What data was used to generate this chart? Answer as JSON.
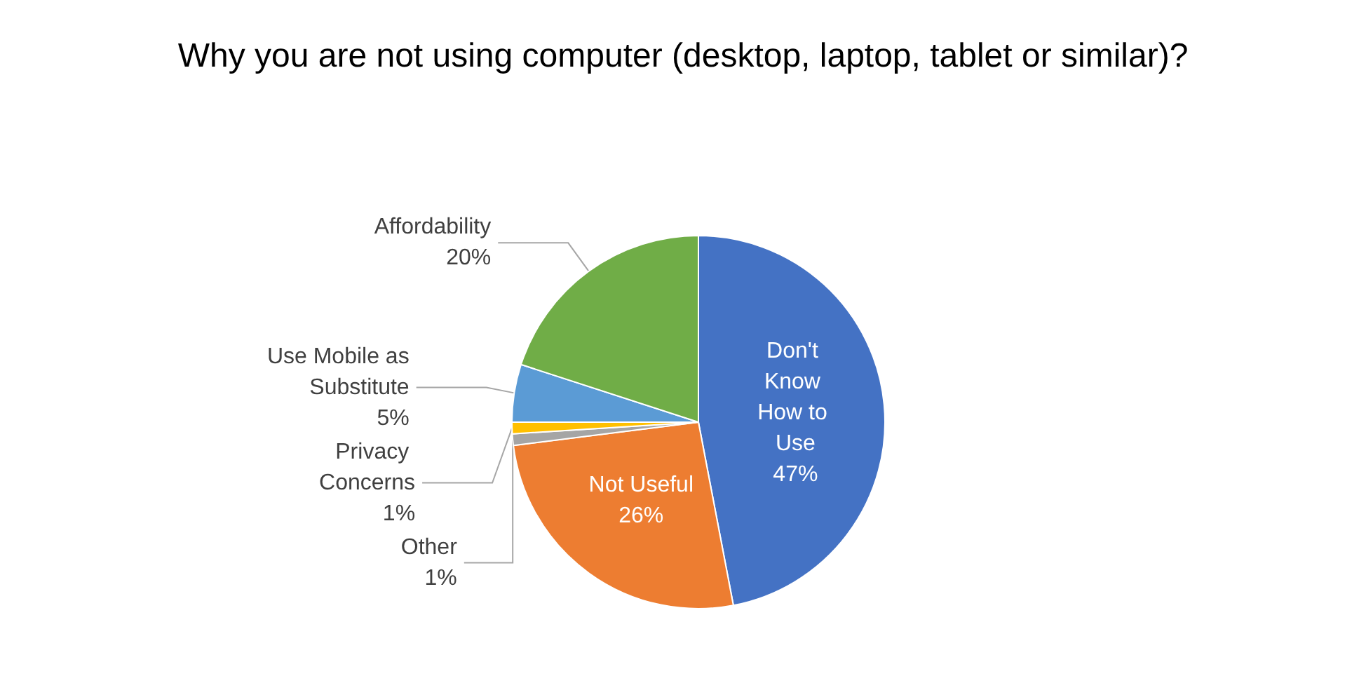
{
  "chart_data": {
    "type": "pie",
    "title": "Why you are not using computer (desktop, laptop, tablet or similar)?",
    "categories": [
      "Don't Know How to Use",
      "Not Useful",
      "Other",
      "Privacy Concerns",
      "Use Mobile as Substitute",
      "Affordability"
    ],
    "values": [
      47,
      26,
      1,
      1,
      5,
      20
    ],
    "colors": [
      "#4472c4",
      "#ed7d31",
      "#a5a5a5",
      "#ffc000",
      "#5b9bd5",
      "#70ad47"
    ],
    "value_labels": [
      "47%",
      "26%",
      "1%",
      "1%",
      "5%",
      "20%"
    ],
    "legend": false
  }
}
